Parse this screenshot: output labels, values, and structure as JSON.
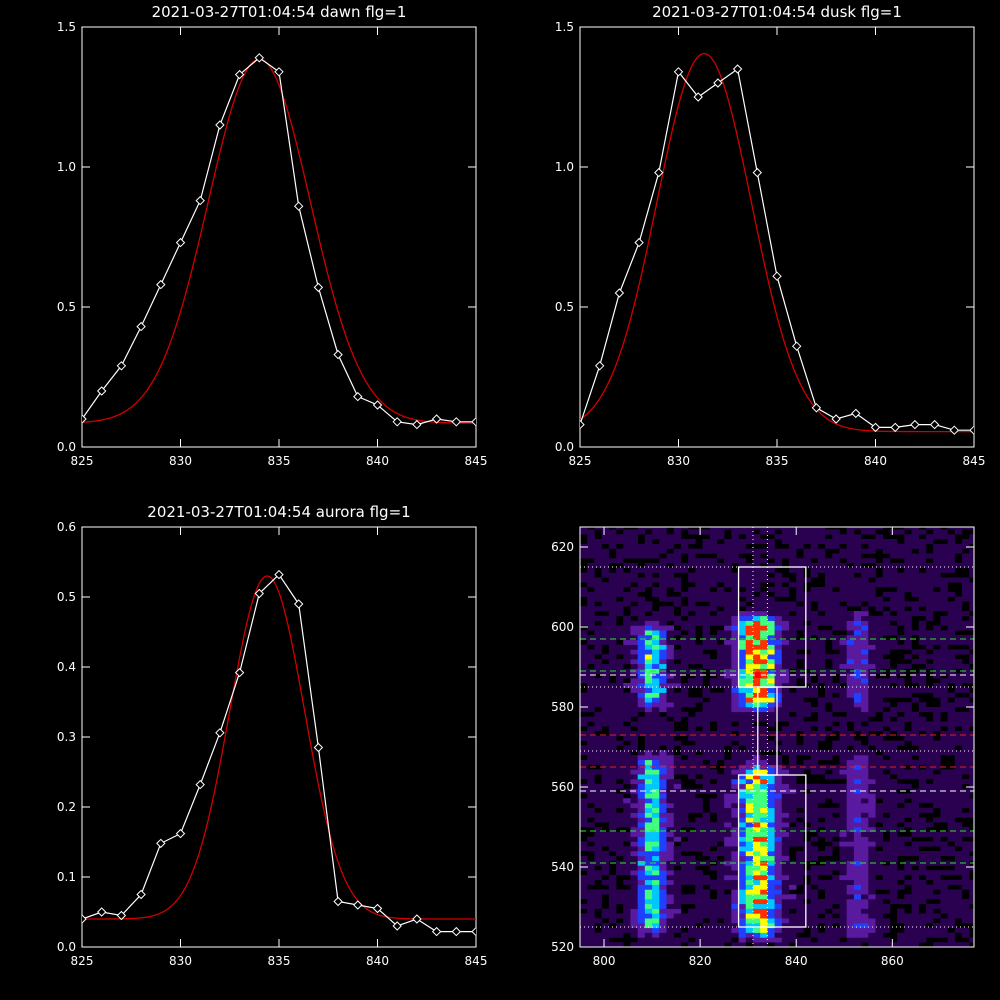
{
  "chart_data": [
    {
      "type": "line",
      "title": "2021-03-27T01:04:54 dawn flg=1",
      "xlim": [
        825,
        845
      ],
      "ylim": [
        0,
        1.5
      ],
      "xticks": [
        825,
        830,
        835,
        840,
        845
      ],
      "yticks": [
        0.0,
        0.5,
        1.0,
        1.5
      ],
      "ytick_labels": [
        "0.0",
        "0.5",
        "1.0",
        "1.5"
      ],
      "series": [
        {
          "style": "data-diamonds",
          "color": "#ffffff",
          "x": [
            825,
            826,
            827,
            828,
            829,
            830,
            831,
            832,
            833,
            834,
            835,
            836,
            837,
            838,
            839,
            840,
            841,
            842,
            843,
            844,
            845
          ],
          "y": [
            0.1,
            0.2,
            0.29,
            0.43,
            0.58,
            0.73,
            0.88,
            1.15,
            1.33,
            1.39,
            1.34,
            0.86,
            0.57,
            0.33,
            0.18,
            0.15,
            0.09,
            0.08,
            0.1,
            0.09,
            0.09
          ]
        },
        {
          "style": "fit",
          "color": "#d00000",
          "gauss": {
            "amp": 1.3,
            "center": 834.0,
            "sigma": 2.6,
            "base": 0.085
          }
        }
      ]
    },
    {
      "type": "line",
      "title": "2021-03-27T01:04:54 dusk flg=1",
      "xlim": [
        825,
        845
      ],
      "ylim": [
        0,
        1.5
      ],
      "xticks": [
        825,
        830,
        835,
        840,
        845
      ],
      "yticks": [
        0.0,
        0.5,
        1.0,
        1.5
      ],
      "ytick_labels": [
        "0.0",
        "0.5",
        "1.0",
        "1.5"
      ],
      "series": [
        {
          "style": "data-diamonds",
          "color": "#ffffff",
          "x": [
            825,
            826,
            827,
            828,
            829,
            830,
            831,
            832,
            833,
            834,
            835,
            836,
            837,
            838,
            839,
            840,
            841,
            842,
            843,
            844,
            845
          ],
          "y": [
            0.08,
            0.29,
            0.55,
            0.73,
            0.98,
            1.34,
            1.25,
            1.3,
            1.35,
            0.98,
            0.61,
            0.36,
            0.14,
            0.1,
            0.12,
            0.07,
            0.07,
            0.08,
            0.08,
            0.06,
            0.06
          ]
        },
        {
          "style": "fit",
          "color": "#d00000",
          "gauss": {
            "amp": 1.35,
            "center": 831.3,
            "sigma": 2.4,
            "base": 0.055
          }
        }
      ]
    },
    {
      "type": "line",
      "title": "2021-03-27T01:04:54 aurora flg=1",
      "xlim": [
        825,
        845
      ],
      "ylim": [
        0,
        0.6
      ],
      "xticks": [
        825,
        830,
        835,
        840,
        845
      ],
      "yticks": [
        0.0,
        0.1,
        0.2,
        0.3,
        0.4,
        0.5,
        0.6
      ],
      "ytick_labels": [
        "0.0",
        "0.1",
        "0.2",
        "0.3",
        "0.4",
        "0.5",
        "0.6"
      ],
      "series": [
        {
          "style": "data-diamonds",
          "color": "#ffffff",
          "x": [
            825,
            826,
            827,
            828,
            829,
            830,
            831,
            832,
            833,
            834,
            835,
            836,
            837,
            838,
            839,
            840,
            841,
            842,
            843,
            844,
            845
          ],
          "y": [
            0.04,
            0.05,
            0.045,
            0.075,
            0.148,
            0.162,
            0.232,
            0.306,
            0.392,
            0.505,
            0.532,
            0.49,
            0.285,
            0.065,
            0.06,
            0.055,
            0.03,
            0.04,
            0.022,
            0.022,
            0.022
          ]
        },
        {
          "style": "fit",
          "color": "#d00000",
          "gauss": {
            "amp": 0.49,
            "center": 834.4,
            "sigma": 1.9,
            "base": 0.04
          }
        }
      ]
    },
    {
      "type": "heatmap",
      "xlim": [
        795,
        877
      ],
      "ylim": [
        520,
        625
      ],
      "xticks": [
        800,
        820,
        840,
        860
      ],
      "yticks": [
        520,
        540,
        560,
        580,
        600,
        620
      ],
      "colormap": [
        "#000000",
        "#2a0050",
        "#5a1aa0",
        "#2040ff",
        "#00c8ff",
        "#40ff80",
        "#ffff00",
        "#ff3000"
      ],
      "bands": [
        {
          "x_center": 810,
          "x_width": 7,
          "segments": [
            [
              583,
              598,
              0.55
            ],
            [
              526,
              565,
              0.5
            ]
          ]
        },
        {
          "x_center": 832,
          "x_width": 9,
          "segments": [
            [
              582,
              600,
              0.95
            ],
            [
              525,
              563,
              0.75
            ]
          ]
        },
        {
          "x_center": 853,
          "x_width": 6,
          "segments": [
            [
              582,
              600,
              0.25
            ],
            [
              525,
              565,
              0.2
            ]
          ]
        }
      ],
      "boxes": [
        {
          "x": [
            828,
            842
          ],
          "y": [
            585,
            615
          ]
        },
        {
          "x": [
            828,
            842
          ],
          "y": [
            525,
            563
          ]
        },
        {
          "x": [
            832,
            836
          ],
          "y": [
            563,
            585
          ]
        }
      ],
      "hlines": [
        {
          "y": 615,
          "color": "#ffffff",
          "style": "dotted"
        },
        {
          "y": 597,
          "color": "#30e030",
          "style": "dashed"
        },
        {
          "y": 589,
          "color": "#30e030",
          "style": "dashed"
        },
        {
          "y": 588,
          "color": "#ffffff",
          "style": "dashed"
        },
        {
          "y": 585,
          "color": "#ffffff",
          "style": "dotted"
        },
        {
          "y": 573,
          "color": "#e02020",
          "style": "dashed"
        },
        {
          "y": 569,
          "color": "#ffffff",
          "style": "dotted"
        },
        {
          "y": 565,
          "color": "#e02020",
          "style": "dashed"
        },
        {
          "y": 559,
          "color": "#ffffff",
          "style": "dashed"
        },
        {
          "y": 549,
          "color": "#30e030",
          "style": "dashed"
        },
        {
          "y": 541,
          "color": "#30e030",
          "style": "dashed"
        },
        {
          "y": 525,
          "color": "#ffffff",
          "style": "dotted"
        }
      ],
      "vlines": [
        {
          "x": 831,
          "color": "#ffffff",
          "style": "dotted"
        },
        {
          "x": 834,
          "color": "#ffffff",
          "style": "dotted"
        }
      ],
      "peak_marker": {
        "x": 832,
        "y": 588,
        "color": "#ff0000"
      }
    }
  ]
}
